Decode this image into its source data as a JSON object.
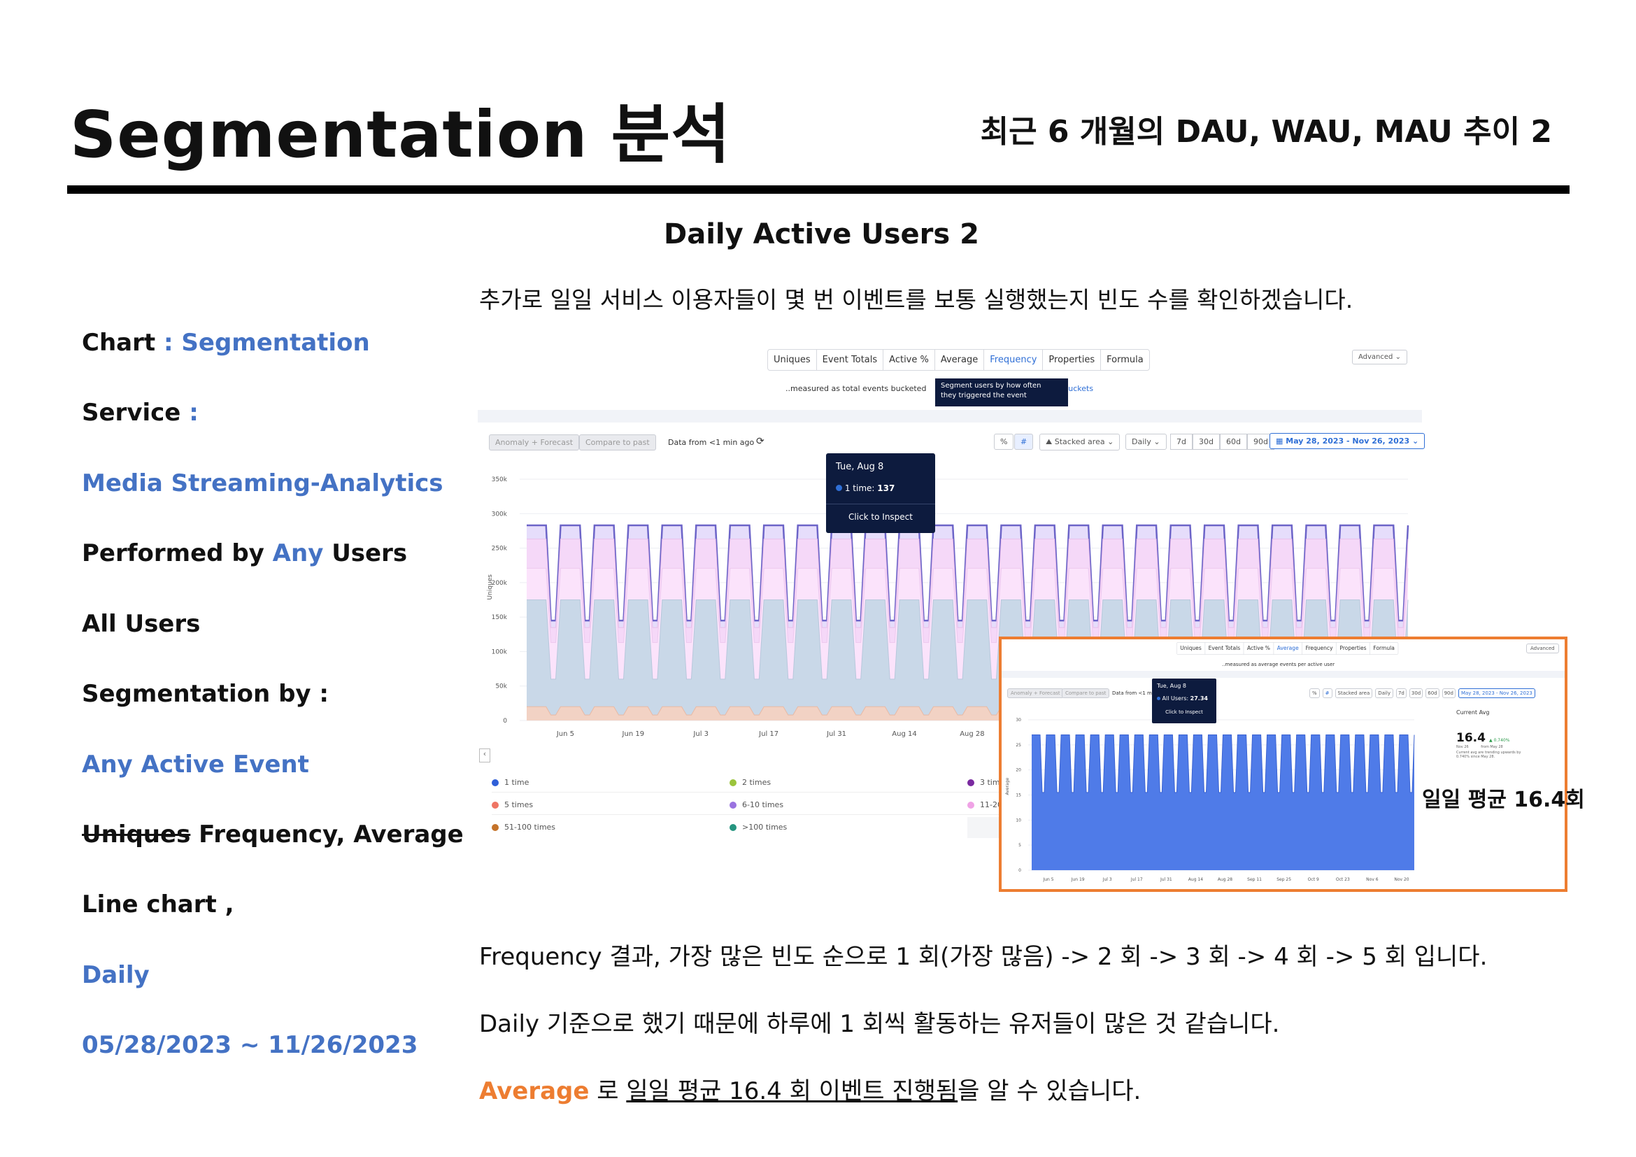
{
  "header": {
    "title": "Segmentation  분석",
    "subtitle": "최근  6 개월의  DAU, WAU, MAU 추이  2"
  },
  "section": {
    "heading": "Daily Active Users 2",
    "intro": "추가로  일일  서비스  이용자들이  몇  번  이벤트를  보통  실행했는지  빈도  수를  확인하겠습니다."
  },
  "sidebar": {
    "chart_label": "Chart",
    "chart_value": ": Segmentation",
    "service_label": "Service",
    "service_colon": ":",
    "service_value": "Media Streaming-Analytics",
    "performed_prefix": "Performed by",
    "performed_any": "Any",
    "performed_suffix": "Users",
    "all_users": "All Users",
    "segmentation_by": "Segmentation by :",
    "any_active_event": "Any Active Event",
    "uniques_struck": "Uniques",
    "measures": "Frequency, Average",
    "line_chart": "Line chart ,",
    "interval": "Daily",
    "date_range": "05/28/2023 ~ 11/26/2023"
  },
  "main_screenshot": {
    "tabs": [
      "Uniques",
      "Event Totals",
      "Active %",
      "Average",
      "Frequency",
      "Properties",
      "Formula"
    ],
    "active_tab": "Frequency",
    "advanced": "Advanced",
    "measured_text": "..measured as total events bucketed",
    "buckets_link": "e buckets",
    "frequency_tooltip_line1": "Segment users by how often",
    "frequency_tooltip_line2": "they triggered the event",
    "anomaly_btn": "Anomaly + Forecast",
    "compare_btn": "Compare to past",
    "data_from": "Data from <1 min ago",
    "pct_btn": "%",
    "hash_btn": "#",
    "stacked_btn": "Stacked area",
    "daily_btn": "Daily",
    "range_btns": [
      "7d",
      "30d",
      "60d",
      "90d"
    ],
    "date_range_btn": "May 28, 2023 - Nov 26, 2023",
    "y_axis_title": "Uniques",
    "tooltip": {
      "date": "Tue, Aug 8",
      "series": "1 time:",
      "value": "137",
      "action": "Click to Inspect"
    },
    "legend": [
      {
        "label": "1 time",
        "color": "#2f5fd8"
      },
      {
        "label": "2 times",
        "color": "#9bc43c"
      },
      {
        "label": "3 times",
        "color": "#7a2aa0"
      },
      {
        "label": "5 times",
        "color": "#ef7564"
      },
      {
        "label": "6-10 times",
        "color": "#9a73e0"
      },
      {
        "label": "11-20 t",
        "color": "#f0a3e6"
      },
      {
        "label": "51-100 times",
        "color": "#c5732a"
      },
      {
        "label": ">100 times",
        "color": "#26957f"
      }
    ]
  },
  "chart_data": {
    "type": "area",
    "stacked": true,
    "ylabel": "Uniques",
    "ylim": [
      0,
      350000
    ],
    "y_ticks": [
      "0",
      "50k",
      "100k",
      "150k",
      "200k",
      "250k",
      "300k",
      "350k"
    ],
    "x_ticks": [
      "Jun 5",
      "Jun 19",
      "Jul 3",
      "Jul 17",
      "Jul 31",
      "Aug 14",
      "Aug 28"
    ],
    "total_weekday": 283000,
    "total_weekend": 145000,
    "weekday_1_time": 175000,
    "weekend_1_time": 60000,
    "bottom_series_weekday": 20000,
    "weeks": 26
  },
  "avg_screenshot": {
    "tabs": [
      "Uniques",
      "Event Totals",
      "Active %",
      "Average",
      "Frequency",
      "Properties",
      "Formula"
    ],
    "active_tab": "Average",
    "advanced": "Advanced",
    "measured_text": "..measured as average events per active user",
    "anomaly_btn": "Anomaly + Forecast",
    "compare_btn": "Compare to past",
    "data_from": "Data from <1 min ago",
    "pct_btn": "%",
    "hash_btn": "#",
    "stacked_btn": "Stacked area",
    "daily_btn": "Daily",
    "range_btns": [
      "7d",
      "30d",
      "60d",
      "90d"
    ],
    "date_range_btn": "May 28, 2023 - Nov 26, 2023",
    "y_axis_title": "Average",
    "tooltip": {
      "date": "Tue, Aug 8",
      "series": "All Users:",
      "value": "27.34",
      "action": "Click to Inspect"
    },
    "current_avg_title": "Current Avg",
    "current_avg_value": "16.4",
    "current_avg_change": "▲ 0.740%",
    "current_avg_from": "from May 28",
    "current_avg_date": "Nov 26",
    "current_avg_note": "Current avg are trending upwards by 0.740% since May 28.",
    "chart": {
      "type": "area",
      "ylim": [
        0,
        30
      ],
      "y_ticks": [
        "0",
        "5",
        "10",
        "15",
        "20",
        "25",
        "30"
      ],
      "x_ticks": [
        "Jun 5",
        "Jun 19",
        "Jul 3",
        "Jul 17",
        "Jul 31",
        "Aug 14",
        "Aug 28",
        "Sep 11",
        "Sep 25",
        "Oct 9",
        "Oct 23",
        "Nov 6",
        "Nov 20"
      ],
      "weekday_value": 27,
      "weekend_value": 15.5,
      "color": "#4f7be8"
    }
  },
  "avg_label": "일일 평균 16.4회",
  "body": {
    "line1": "Frequency 결과,  가장  많은  빈도  순으로  1 회(가장  많음) -> 2 회  -> 3 회  -> 4 회  -> 5 회  입니다.",
    "line2": "Daily 기준으로  했기  때문에  하루에  1 회씩  활동하는  유저들이  많은  것  같습니다.",
    "line3_highlight": "Average",
    "line3_mid": " 로 ",
    "line3_underlined": "일일  평균  16.4 회  이벤트  진행됨",
    "line3_end": "을  알  수  있습니다."
  }
}
